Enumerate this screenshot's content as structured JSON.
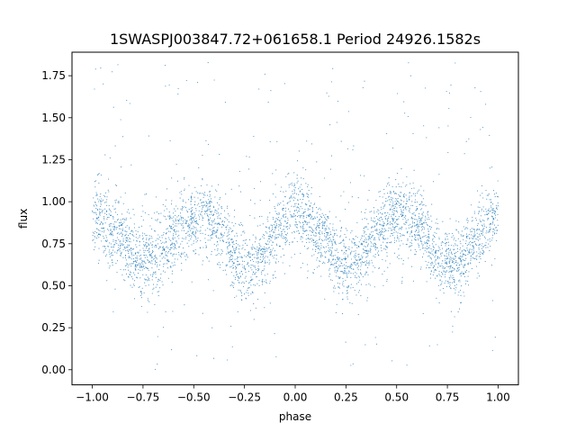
{
  "chart_data": {
    "type": "scatter",
    "title": "1SWASPJ003847.72+061658.1 Period 24926.1582s",
    "xlabel": "phase",
    "ylabel": "flux",
    "xlim": [
      -1.1,
      1.1
    ],
    "ylim": [
      -0.09,
      1.89
    ],
    "x_ticks": [
      -1.0,
      -0.75,
      -0.5,
      -0.25,
      0.0,
      0.25,
      0.5,
      0.75,
      1.0
    ],
    "x_tick_labels": [
      "−1.00",
      "−0.75",
      "−0.50",
      "−0.25",
      "0.00",
      "0.25",
      "0.50",
      "0.75",
      "1.00"
    ],
    "y_ticks": [
      0.0,
      0.25,
      0.5,
      0.75,
      1.0,
      1.25,
      1.5,
      1.75
    ],
    "y_tick_labels": [
      "0.00",
      "0.25",
      "0.50",
      "0.75",
      "1.00",
      "1.25",
      "1.50",
      "1.75"
    ],
    "grid": false,
    "legend": "none",
    "marker_color": "#1f77b4",
    "series": [
      {
        "x_range": [
          -1.0,
          1.0
        ],
        "trend_phase": [
          -1.0,
          -0.9,
          -0.8,
          -0.72,
          -0.65,
          -0.55,
          -0.45,
          -0.35,
          -0.28,
          -0.22,
          -0.15,
          -0.05,
          0.0,
          0.05,
          0.15,
          0.22,
          0.28,
          0.35,
          0.45,
          0.55,
          0.65,
          0.72,
          0.78,
          0.85,
          0.95,
          1.0
        ],
        "trend_flux": [
          0.92,
          0.85,
          0.7,
          0.63,
          0.72,
          0.88,
          0.92,
          0.78,
          0.63,
          0.62,
          0.72,
          0.88,
          0.93,
          0.9,
          0.76,
          0.62,
          0.63,
          0.73,
          0.88,
          0.92,
          0.78,
          0.63,
          0.61,
          0.72,
          0.87,
          0.92
        ],
        "scatter_sd": 0.11,
        "outlier_range": [
          0.0,
          1.85
        ]
      }
    ]
  }
}
